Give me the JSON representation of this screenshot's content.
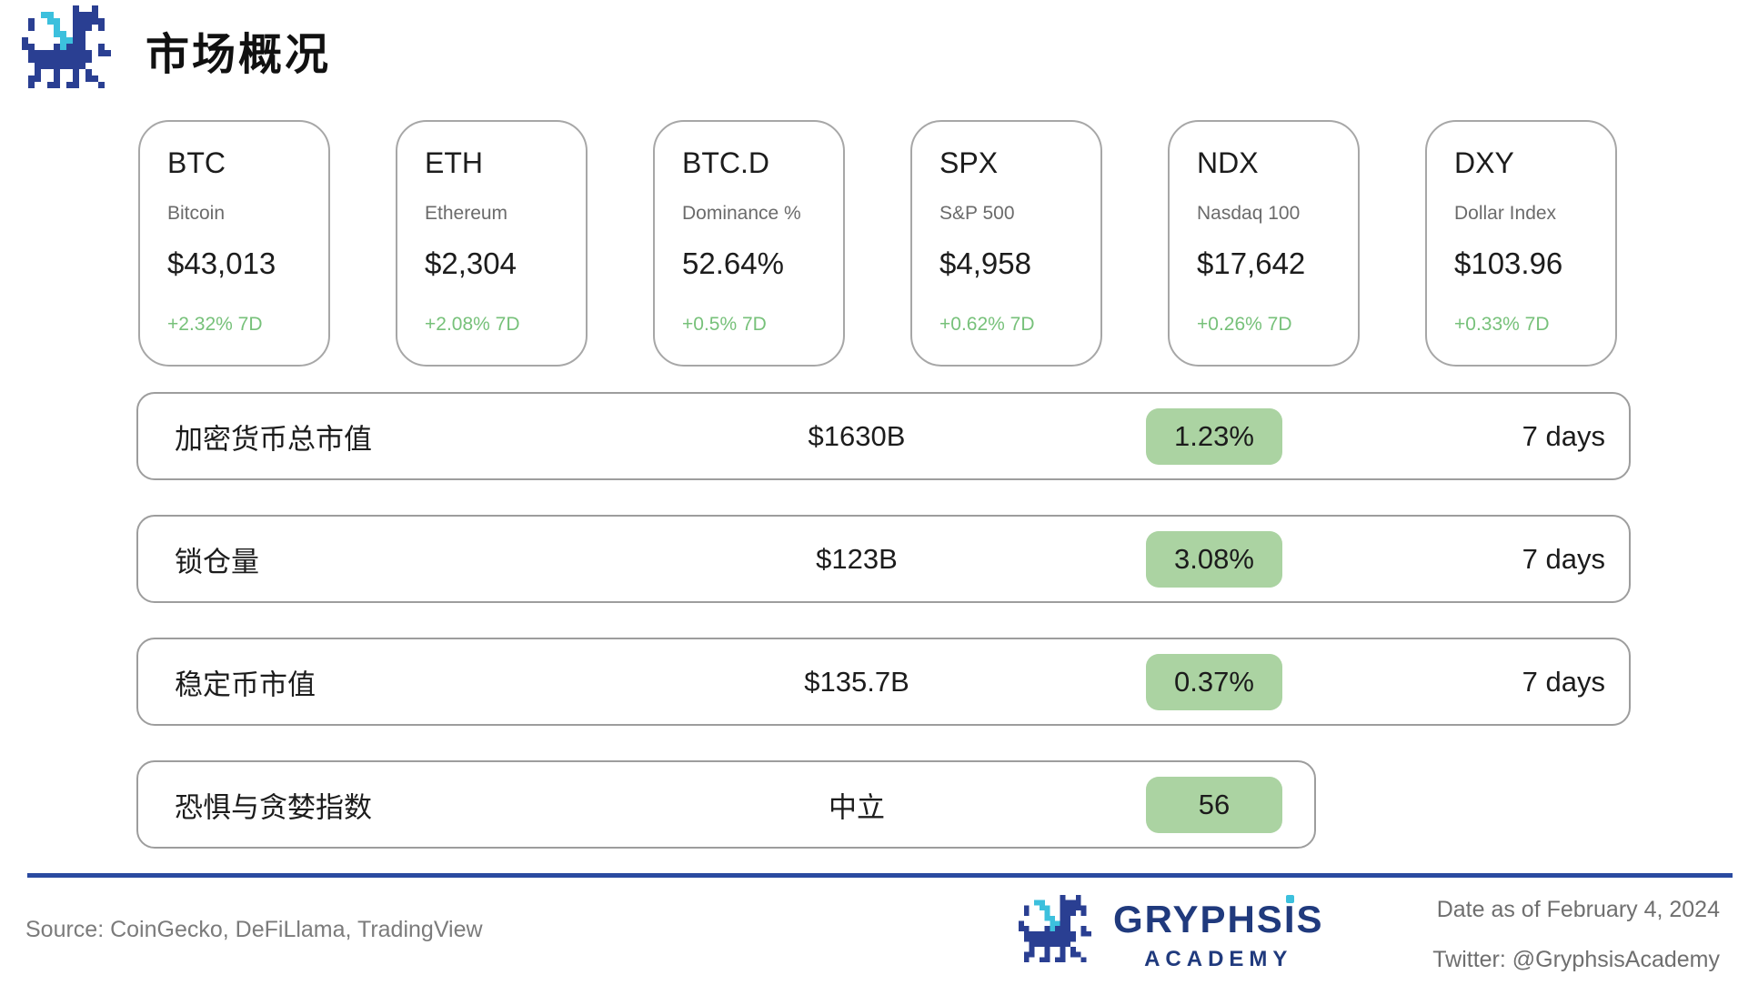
{
  "header": {
    "title": "市场概况"
  },
  "cards": [
    {
      "ticker": "BTC",
      "name": "Bitcoin",
      "value": "$43,013",
      "change": "+2.32% 7D"
    },
    {
      "ticker": "ETH",
      "name": "Ethereum",
      "value": "$2,304",
      "change": "+2.08% 7D"
    },
    {
      "ticker": "BTC.D",
      "name": "Dominance %",
      "value": "52.64%",
      "change": "+0.5% 7D"
    },
    {
      "ticker": "SPX",
      "name": "S&P 500",
      "value": "$4,958",
      "change": "+0.62% 7D"
    },
    {
      "ticker": "NDX",
      "name": "Nasdaq 100",
      "value": "$17,642",
      "change": "+0.26% 7D"
    },
    {
      "ticker": "DXY",
      "name": "Dollar Index",
      "value": "$103.96",
      "change": "+0.33% 7D"
    }
  ],
  "rows": [
    {
      "label": "加密货币总市值",
      "value": "$1630B",
      "badge": "1.23%",
      "period": "7 days"
    },
    {
      "label": "锁仓量",
      "value": "$123B",
      "badge": "3.08%",
      "period": "7 days"
    },
    {
      "label": "稳定币市值",
      "value": "$135.7B",
      "badge": "0.37%",
      "period": "7 days"
    },
    {
      "label": "恐惧与贪婪指数",
      "value": "中立",
      "badge": "56",
      "period": ""
    }
  ],
  "footer": {
    "source": "Source: CoinGecko, DeFiLlama, TradingView",
    "brand": "GRYPHSIS",
    "brand_sub": "ACADEMY",
    "date": "Date as of February 4, 2024",
    "twitter": "Twitter: @GryphsisAcademy"
  },
  "colors": {
    "positive_text": "#77c17a",
    "badge_bg": "#abd3a2",
    "line_blue": "#2a4aa0",
    "brand_navy": "#203a7d",
    "dragon_navy": "#2a3f92",
    "dragon_cyan": "#3cc0dd"
  }
}
